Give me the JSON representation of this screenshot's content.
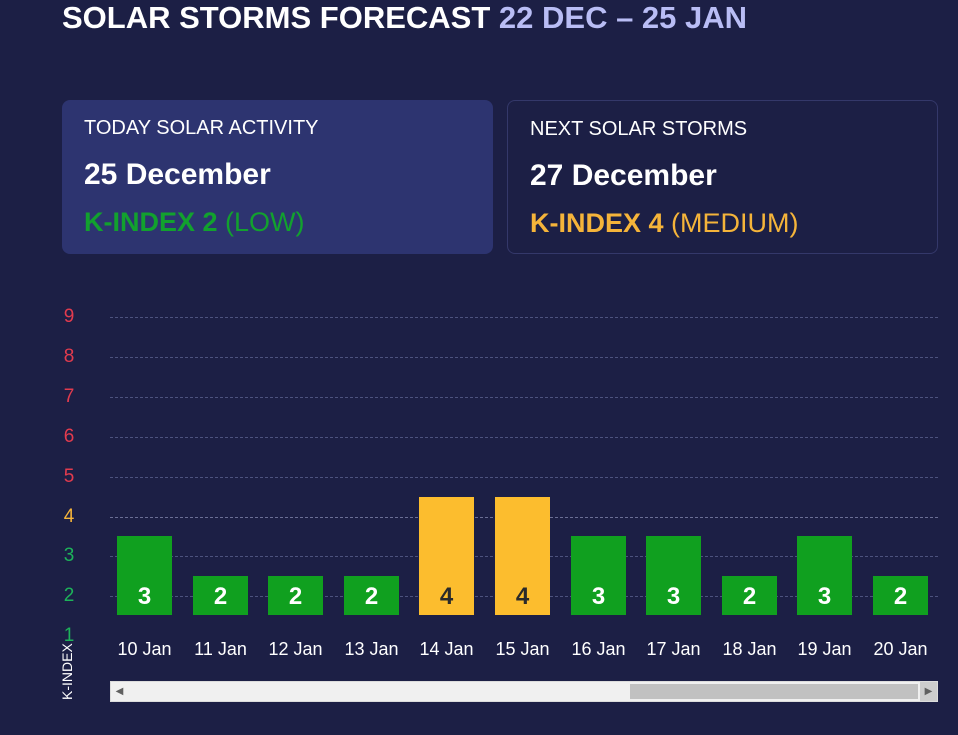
{
  "header": {
    "title": "SOLAR STORMS FORECAST",
    "range": "22 DEC – 25 JAN"
  },
  "today": {
    "label": "TODAY SOLAR ACTIVITY",
    "date": "25 December",
    "kindex_value": "K-INDEX 2",
    "kindex_level": " (LOW)"
  },
  "next": {
    "label": "NEXT SOLAR STORMS",
    "date": "27 December",
    "kindex_value": "K-INDEX 4",
    "kindex_level": " (MEDIUM)"
  },
  "colors": {
    "low": "#10a01f",
    "medium": "#fcbd2e",
    "high": "#e6394a",
    "axis_low": "#1db35a",
    "axis_medium": "#f5b43a",
    "axis_high": "#e23b4e"
  },
  "chart_data": {
    "type": "bar",
    "categories": [
      "10 Jan",
      "11 Jan",
      "12 Jan",
      "13 Jan",
      "14 Jan",
      "15 Jan",
      "16 Jan",
      "17 Jan",
      "18 Jan",
      "19 Jan",
      "20 Jan"
    ],
    "values": [
      3,
      2,
      2,
      2,
      4,
      4,
      3,
      3,
      2,
      3,
      2
    ],
    "yticks": [
      "1",
      "2",
      "3",
      "4",
      "5",
      "6",
      "7",
      "8",
      "9"
    ],
    "ylabel": "K-INDEX",
    "ylim": [
      1,
      9
    ],
    "grid": true
  },
  "scrollbar": {
    "left_arrow": "◀",
    "right_arrow": "▶"
  }
}
